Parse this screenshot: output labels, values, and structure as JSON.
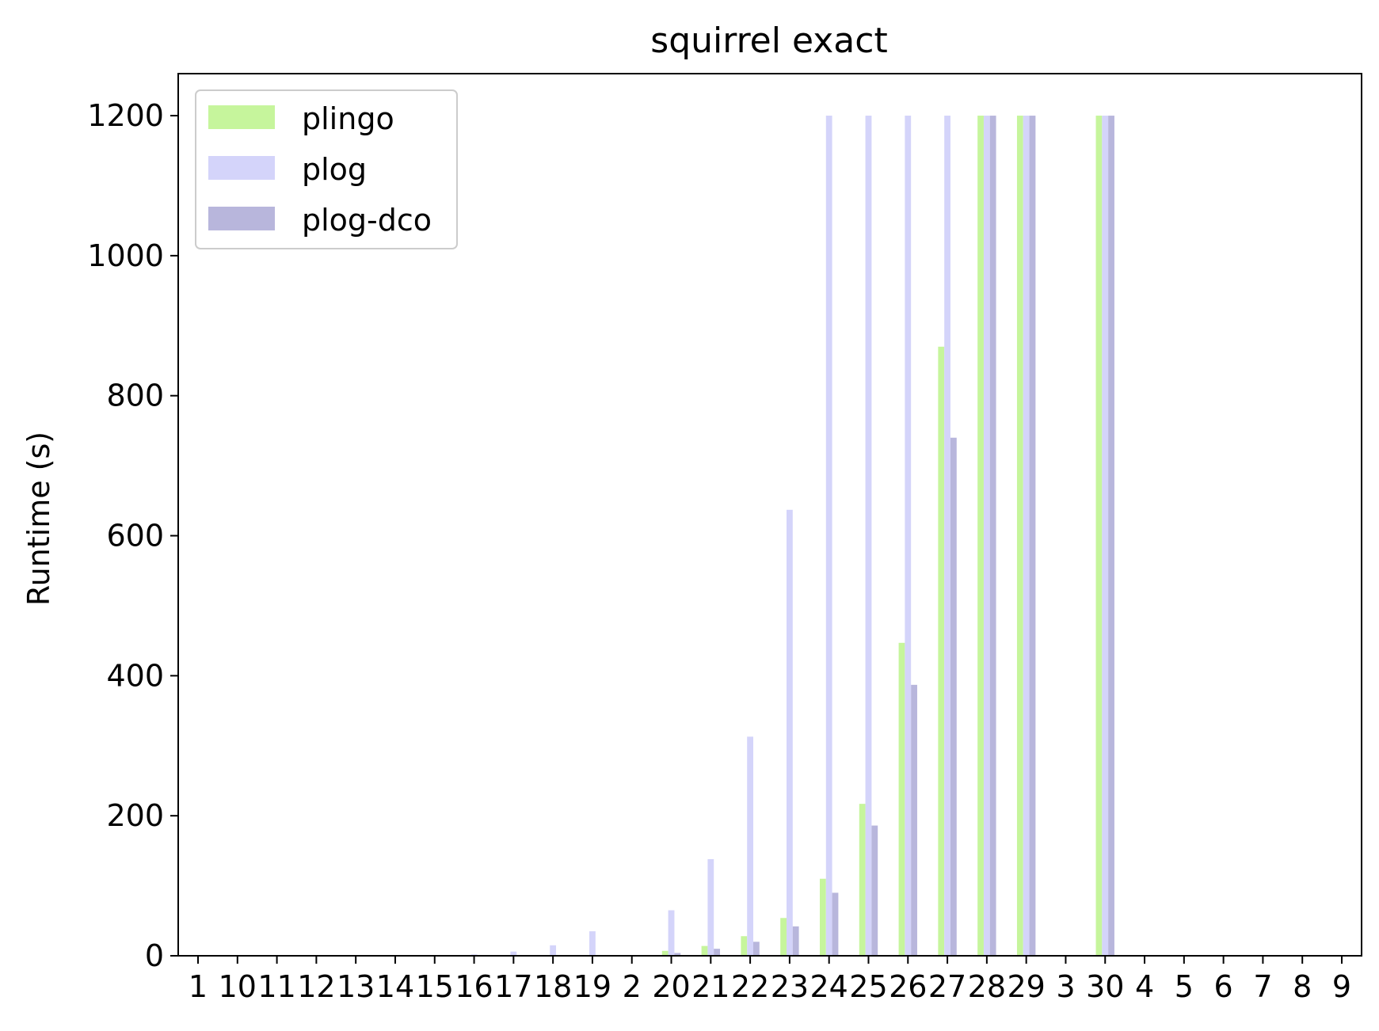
{
  "chart_data": {
    "type": "bar",
    "title": "squirrel exact",
    "xlabel": "",
    "ylabel": "Runtime (s)",
    "ylim": [
      0,
      1260
    ],
    "yticks": [
      0,
      200,
      400,
      600,
      800,
      1000,
      1200
    ],
    "categories": [
      "1",
      "10",
      "11",
      "12",
      "13",
      "14",
      "15",
      "16",
      "17",
      "18",
      "19",
      "2",
      "20",
      "21",
      "22",
      "23",
      "24",
      "25",
      "26",
      "27",
      "28",
      "29",
      "3",
      "30",
      "4",
      "5",
      "6",
      "7",
      "8",
      "9"
    ],
    "series": [
      {
        "name": "plingo",
        "color": "#c6f59c",
        "values": [
          0,
          0,
          0,
          0,
          0,
          0,
          0,
          0,
          0,
          0,
          1,
          0,
          7,
          14,
          28,
          54,
          110,
          217,
          447,
          870,
          1200,
          1200,
          0,
          1200,
          0,
          0,
          0,
          0,
          0,
          0
        ]
      },
      {
        "name": "plog",
        "color": "#d4d4fa",
        "values": [
          0,
          0,
          0,
          0,
          0,
          0,
          0,
          2,
          6,
          15,
          35,
          0,
          65,
          138,
          313,
          637,
          1200,
          1200,
          1200,
          1200,
          1200,
          1200,
          0,
          1200,
          0,
          0,
          0,
          0,
          0,
          0
        ]
      },
      {
        "name": "plog-dco",
        "color": "#b8b6dc",
        "values": [
          0,
          0,
          0,
          0,
          0,
          0,
          0,
          0,
          0,
          0,
          0,
          0,
          4,
          10,
          20,
          42,
          90,
          186,
          387,
          740,
          1200,
          1200,
          0,
          1200,
          0,
          0,
          0,
          0,
          0,
          0
        ]
      }
    ],
    "legend_position": "upper-left",
    "grid": false
  }
}
